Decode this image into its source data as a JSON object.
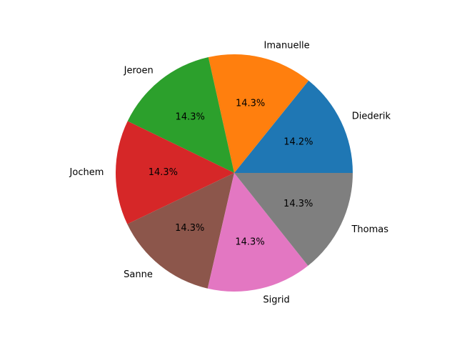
{
  "chart_data": {
    "type": "pie",
    "labels": [
      "Diederik",
      "Imanuelle",
      "Jeroen",
      "Jochem",
      "Sanne",
      "Sigrid",
      "Thomas"
    ],
    "values": [
      14.2,
      14.3,
      14.3,
      14.3,
      14.3,
      14.3,
      14.3
    ],
    "percent_labels": [
      "14.2%",
      "14.3%",
      "14.3%",
      "14.3%",
      "14.3%",
      "14.3%",
      "14.3%"
    ],
    "colors": [
      "#1f77b4",
      "#ff7f0e",
      "#2ca02c",
      "#d62728",
      "#8c564b",
      "#e377c2",
      "#7f7f7f"
    ],
    "start_angle_deg": 0,
    "direction": "counterclockwise",
    "legend": "none"
  }
}
